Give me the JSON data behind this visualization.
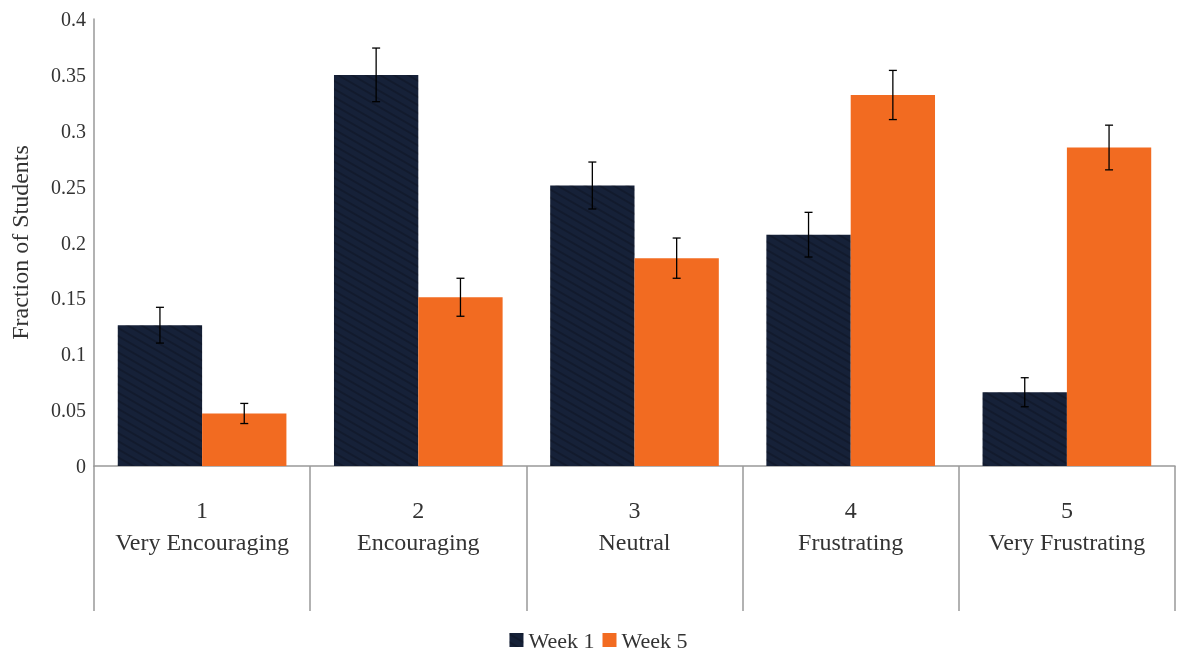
{
  "chart_data": {
    "type": "bar",
    "ylabel": "Fraction of Students",
    "categories": [
      "1\nVery Encouraging",
      "2\nEncouraging",
      "3\nNeutral",
      "4\nFrustrating",
      "5\nVery Frustrating"
    ],
    "series": [
      {
        "name": "Week 1",
        "color": "#162138",
        "values": [
          0.126,
          0.35,
          0.251,
          0.207,
          0.066
        ],
        "errors": [
          0.016,
          0.024,
          0.021,
          0.02,
          0.013
        ]
      },
      {
        "name": "Week 5",
        "color": "#f26b21",
        "values": [
          0.047,
          0.151,
          0.186,
          0.332,
          0.285
        ],
        "errors": [
          0.009,
          0.017,
          0.018,
          0.022,
          0.02
        ]
      }
    ],
    "ylim": [
      0,
      0.4
    ],
    "yticks": [
      0,
      0.05,
      0.1,
      0.15,
      0.2,
      0.25,
      0.3,
      0.35,
      0.4
    ],
    "grid": false,
    "legend": "bottom"
  }
}
